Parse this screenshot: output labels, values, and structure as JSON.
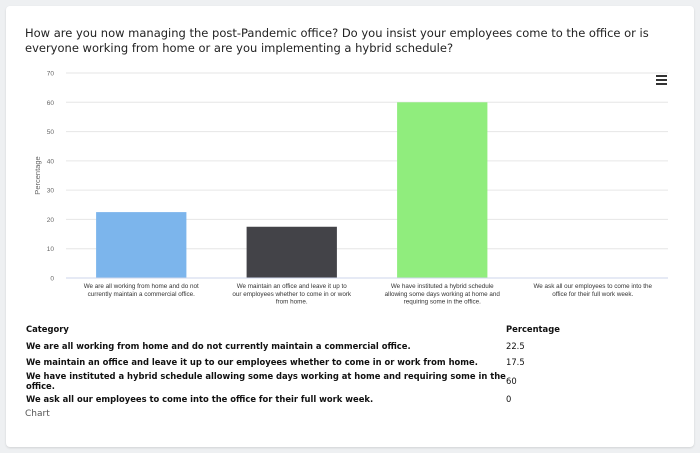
{
  "question": "How are you now managing the post-Pandemic office? Do you insist your employees come to the office or is everyone working from home or are you implementing a hybrid schedule?",
  "menu_icon": "hamburger-menu-icon",
  "chart_data": {
    "type": "bar",
    "ylabel": "Percentage",
    "ylim": [
      0,
      70
    ],
    "yticks": [
      0,
      10,
      20,
      30,
      40,
      50,
      60,
      70
    ],
    "grid": true,
    "categories": [
      [
        "We are all working from home and do not",
        "currently maintain a commercial office."
      ],
      [
        "We maintain an office and leave it up to",
        "our employees whether to come in or work",
        "from home."
      ],
      [
        "We have instituted a hybrid schedule",
        "allowing some days working at home and",
        "requiring some in the office."
      ],
      [
        "We ask all our employees to come into the",
        "office for their full work week."
      ]
    ],
    "values": [
      22.5,
      17.5,
      60,
      0
    ],
    "colors": [
      "#7cb5ec",
      "#434348",
      "#90ed7d",
      "#f7a35c"
    ]
  },
  "table": {
    "headers": [
      "Category",
      "Percentage"
    ],
    "rows": [
      [
        "We are all working from home and do not currently maintain a commercial office.",
        "22.5"
      ],
      [
        "We maintain an office and leave it up to our employees whether to come in or work from home.",
        "17.5"
      ],
      [
        "We have instituted a hybrid schedule allowing some days working at home and requiring some in the office.",
        "60"
      ],
      [
        "We ask all our employees to come into the office for their full work week.",
        "0"
      ]
    ]
  },
  "chart_link": "Chart"
}
